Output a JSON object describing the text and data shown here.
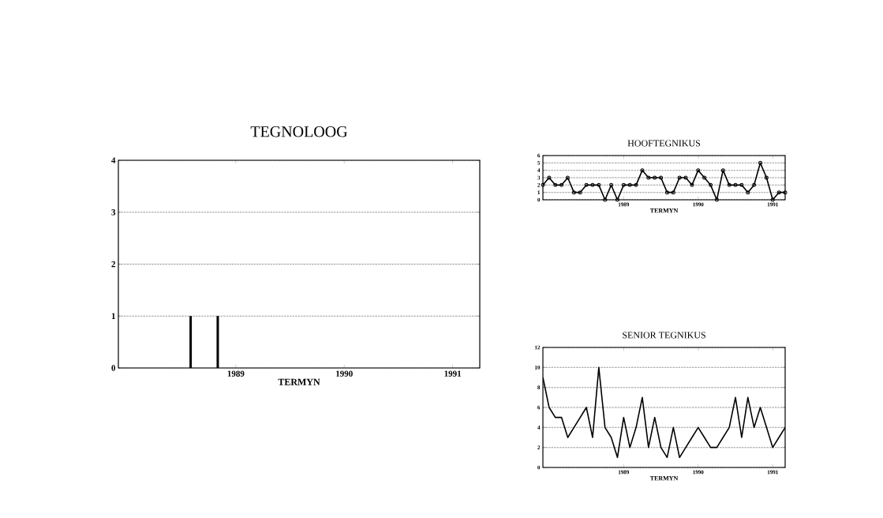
{
  "chart_data": [
    {
      "type": "bar",
      "title": "TEGNOLOOG",
      "xlabel": "TERMYN",
      "color": "#000000",
      "grid": "y",
      "ylim": [
        0,
        4
      ],
      "yticks": [
        0,
        1,
        2,
        3,
        4
      ],
      "xlim": [
        "1987-12",
        "1991-04"
      ],
      "xticks": [
        {
          "value": "1989-01",
          "label": "1989"
        },
        {
          "value": "1990-01",
          "label": "1990"
        },
        {
          "value": "1991-01",
          "label": "1991"
        }
      ],
      "x": [
        "1988-01",
        "1988-02",
        "1988-03",
        "1988-04",
        "1988-05",
        "1988-06",
        "1988-07",
        "1988-08",
        "1988-09",
        "1988-10",
        "1988-11",
        "1988-12",
        "1989-01",
        "1989-02",
        "1989-03",
        "1989-04",
        "1989-05",
        "1989-06",
        "1989-07",
        "1989-08",
        "1989-09",
        "1989-10",
        "1989-11",
        "1989-12",
        "1990-01",
        "1990-02",
        "1990-03",
        "1990-04",
        "1990-05",
        "1990-06",
        "1990-07",
        "1990-08",
        "1990-09",
        "1990-10",
        "1990-11",
        "1990-12",
        "1991-01",
        "1991-02",
        "1991-03"
      ],
      "values": [
        0,
        0,
        0,
        0,
        0,
        0,
        0,
        1,
        0,
        0,
        1,
        0,
        0,
        0,
        0,
        0,
        0,
        0,
        0,
        0,
        0,
        0,
        0,
        0,
        0,
        0,
        0,
        0,
        0,
        0,
        0,
        0,
        0,
        0,
        0,
        0,
        0,
        0,
        0
      ]
    },
    {
      "type": "line",
      "title": "HOOFTEGNIKUS",
      "xlabel": "TERMYN",
      "color": "#000000",
      "grid": "y",
      "marker": "circle",
      "ylim": [
        0,
        6
      ],
      "yticks": [
        0,
        1,
        2,
        3,
        4,
        5,
        6
      ],
      "xlim": [
        "1987-12",
        "1991-03"
      ],
      "xticks": [
        {
          "value": "1989-01",
          "label": "1989"
        },
        {
          "value": "1990-01",
          "label": "1990"
        },
        {
          "value": "1991-01",
          "label": "1991"
        }
      ],
      "x": [
        "1987-12",
        "1988-01",
        "1988-02",
        "1988-03",
        "1988-04",
        "1988-05",
        "1988-06",
        "1988-07",
        "1988-08",
        "1988-09",
        "1988-10",
        "1988-11",
        "1988-12",
        "1989-01",
        "1989-02",
        "1989-03",
        "1989-04",
        "1989-05",
        "1989-06",
        "1989-07",
        "1989-08",
        "1989-09",
        "1989-10",
        "1989-11",
        "1989-12",
        "1990-01",
        "1990-02",
        "1990-03",
        "1990-04",
        "1990-05",
        "1990-06",
        "1990-07",
        "1990-08",
        "1990-09",
        "1990-10",
        "1990-11",
        "1990-12",
        "1991-01",
        "1991-02",
        "1991-03"
      ],
      "values": [
        2,
        3,
        2,
        2,
        3,
        1,
        1,
        2,
        2,
        2,
        0,
        2,
        0,
        2,
        2,
        2,
        4,
        3,
        3,
        3,
        1,
        1,
        3,
        3,
        2,
        4,
        3,
        2,
        0,
        4,
        2,
        2,
        2,
        1,
        2,
        5,
        3,
        0,
        1,
        1
      ]
    },
    {
      "type": "line",
      "title": "SENIOR TEGNIKUS",
      "xlabel": "TERMYN",
      "color": "#000000",
      "grid": "y",
      "ylim": [
        0,
        12
      ],
      "yticks": [
        0,
        2,
        4,
        6,
        8,
        10,
        12
      ],
      "xlim": [
        "1987-12",
        "1991-03"
      ],
      "xticks": [
        {
          "value": "1989-01",
          "label": "1989"
        },
        {
          "value": "1990-01",
          "label": "1990"
        },
        {
          "value": "1991-01",
          "label": "1991"
        }
      ],
      "x": [
        "1987-12",
        "1988-01",
        "1988-02",
        "1988-03",
        "1988-04",
        "1988-05",
        "1988-06",
        "1988-07",
        "1988-08",
        "1988-09",
        "1988-10",
        "1988-11",
        "1988-12",
        "1989-01",
        "1989-02",
        "1989-03",
        "1989-04",
        "1989-05",
        "1989-06",
        "1989-07",
        "1989-08",
        "1989-09",
        "1989-10",
        "1989-11",
        "1989-12",
        "1990-01",
        "1990-02",
        "1990-03",
        "1990-04",
        "1990-05",
        "1990-06",
        "1990-07",
        "1990-08",
        "1990-09",
        "1990-10",
        "1990-11",
        "1990-12",
        "1991-01",
        "1991-02",
        "1991-03"
      ],
      "values": [
        9,
        6,
        5,
        5,
        3,
        4,
        5,
        6,
        3,
        10,
        4,
        3,
        1,
        5,
        2,
        4,
        7,
        2,
        5,
        2,
        1,
        4,
        1,
        2,
        3,
        4,
        3,
        2,
        2,
        3,
        4,
        7,
        3,
        7,
        4,
        6,
        4,
        2,
        3,
        4
      ]
    }
  ]
}
